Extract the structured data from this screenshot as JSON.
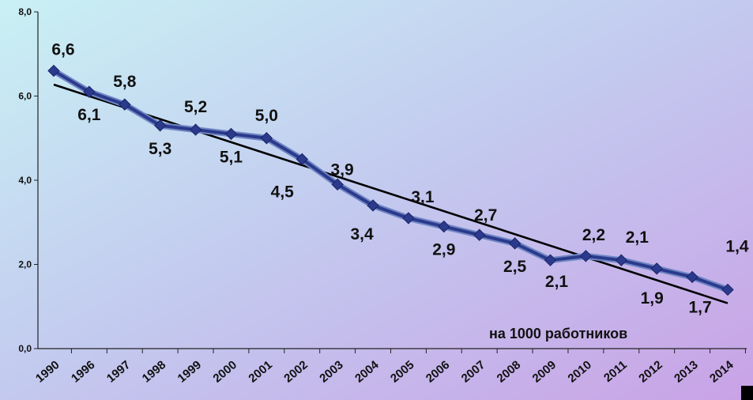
{
  "chart_data": {
    "type": "line",
    "categories": [
      "1990",
      "1996",
      "1997",
      "1998",
      "1999",
      "2000",
      "2001",
      "2002",
      "2003",
      "2004",
      "2005",
      "2006",
      "2007",
      "2008",
      "2009",
      "2010",
      "2011",
      "2012",
      "2013",
      "2014"
    ],
    "series": [
      {
        "values": [
          6.6,
          6.1,
          5.8,
          5.3,
          5.2,
          5.1,
          5.0,
          4.5,
          3.9,
          3.4,
          3.1,
          2.9,
          2.7,
          2.5,
          2.1,
          2.2,
          2.1,
          1.9,
          1.7,
          1.4
        ],
        "data_labels": [
          "6,6",
          "6,1",
          "5,8",
          "5,3",
          "5,2",
          "5,1",
          "5,0",
          "4,5",
          "3,9",
          "3,4",
          "3,1",
          "2,9",
          "2,7",
          "2,5",
          "2,1",
          "2,2",
          "2,1",
          "1,9",
          "1,7",
          "1,4"
        ],
        "color": "#2b3a8c",
        "outline_color": "#6f86c4"
      }
    ],
    "trendline": {
      "type": "linear",
      "color": "#000000"
    },
    "y_ticks": [
      "0,0",
      "2,0",
      "4,0",
      "6,0",
      "8,0"
    ],
    "ylim": [
      0,
      8
    ],
    "annotation": "на 1000 работников",
    "grid": false,
    "background_colors": [
      "#c9f1f4",
      "#c3c9ef",
      "#c9a2e6"
    ]
  }
}
